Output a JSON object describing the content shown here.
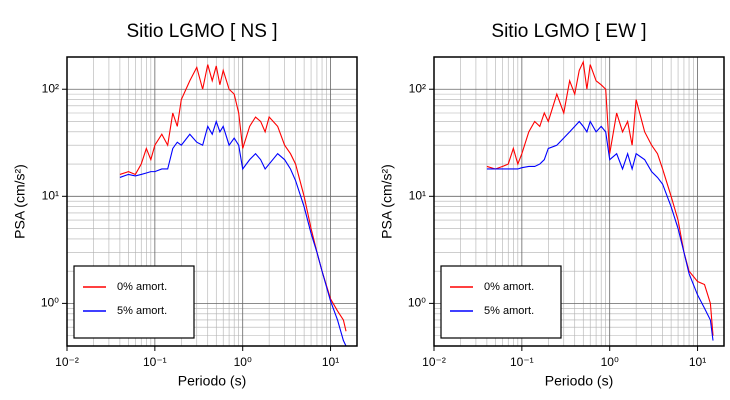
{
  "chart_data": [
    {
      "type": "line",
      "title": "Sitio LGMO [ NS ]",
      "x_label": "Periodo (s)",
      "y_label": "PSA (cm/s²)",
      "log_x": true,
      "log_y": true,
      "grid": true,
      "minor_grid": true,
      "legend": "lower left",
      "xlim": [
        0.01,
        20
      ],
      "ylim": [
        0.4,
        200
      ],
      "xticks": [
        {
          "value": 0.01,
          "label": "10⁻²"
        },
        {
          "value": 0.1,
          "label": "10⁻¹"
        },
        {
          "value": 1,
          "label": "10⁰"
        },
        {
          "value": 10,
          "label": "10¹"
        }
      ],
      "yticks": [
        {
          "value": 1,
          "label": "10⁰"
        },
        {
          "value": 10,
          "label": "10¹"
        },
        {
          "value": 100,
          "label": "10²"
        }
      ],
      "x": [
        0.04,
        0.05,
        0.06,
        0.07,
        0.08,
        0.09,
        0.1,
        0.12,
        0.14,
        0.16,
        0.18,
        0.2,
        0.25,
        0.3,
        0.35,
        0.4,
        0.45,
        0.5,
        0.55,
        0.6,
        0.7,
        0.8,
        0.9,
        1.0,
        1.2,
        1.4,
        1.6,
        1.8,
        2.0,
        2.5,
        3.0,
        3.5,
        4.0,
        5.0,
        6.0,
        7.0,
        8.0,
        10,
        12,
        14,
        15
      ],
      "series": [
        {
          "name": "0% amort.",
          "color": "#ff0000",
          "values": [
            16,
            17,
            16,
            20,
            28,
            22,
            30,
            38,
            30,
            60,
            45,
            80,
            120,
            160,
            100,
            170,
            120,
            165,
            110,
            150,
            100,
            90,
            60,
            28,
            45,
            55,
            50,
            40,
            55,
            45,
            30,
            25,
            20,
            10,
            5,
            3,
            2,
            1.1,
            0.85,
            0.7,
            0.55
          ]
        },
        {
          "name": "5% amort.",
          "color": "#0000ff",
          "values": [
            15,
            16,
            15.5,
            16,
            16.5,
            17,
            17,
            18,
            18,
            28,
            32,
            30,
            38,
            32,
            30,
            45,
            38,
            50,
            40,
            45,
            30,
            35,
            30,
            18,
            22,
            25,
            22,
            18,
            20,
            25,
            22,
            18,
            14,
            8,
            4.5,
            3,
            2,
            1.05,
            0.7,
            0.45,
            0.4
          ]
        }
      ]
    },
    {
      "type": "line",
      "title": "Sitio LGMO [ EW ]",
      "x_label": "Periodo (s)",
      "y_label": "PSA (cm/s²)",
      "log_x": true,
      "log_y": true,
      "grid": true,
      "minor_grid": true,
      "legend": "lower left",
      "xlim": [
        0.01,
        20
      ],
      "ylim": [
        0.4,
        200
      ],
      "xticks": [
        {
          "value": 0.01,
          "label": "10⁻²"
        },
        {
          "value": 0.1,
          "label": "10⁻¹"
        },
        {
          "value": 1,
          "label": "10⁰"
        },
        {
          "value": 10,
          "label": "10¹"
        }
      ],
      "yticks": [
        {
          "value": 1,
          "label": "10⁰"
        },
        {
          "value": 10,
          "label": "10¹"
        },
        {
          "value": 100,
          "label": "10²"
        }
      ],
      "x": [
        0.04,
        0.05,
        0.06,
        0.07,
        0.08,
        0.09,
        0.1,
        0.12,
        0.14,
        0.16,
        0.18,
        0.2,
        0.25,
        0.3,
        0.35,
        0.4,
        0.45,
        0.5,
        0.55,
        0.6,
        0.7,
        0.8,
        0.9,
        1.0,
        1.2,
        1.4,
        1.6,
        1.8,
        2.0,
        2.5,
        3.0,
        3.5,
        4.0,
        5.0,
        6.0,
        7.0,
        8.0,
        10,
        12,
        14,
        15
      ],
      "series": [
        {
          "name": "0% amort.",
          "color": "#ff0000",
          "values": [
            19,
            18,
            19,
            20,
            28,
            20,
            25,
            40,
            50,
            45,
            60,
            50,
            90,
            60,
            120,
            90,
            150,
            180,
            100,
            170,
            120,
            110,
            100,
            25,
            60,
            40,
            50,
            30,
            80,
            40,
            30,
            25,
            18,
            10,
            6,
            3,
            2,
            1.6,
            1.5,
            1.0,
            0.5
          ]
        },
        {
          "name": "5% amort.",
          "color": "#0000ff",
          "values": [
            18,
            18,
            18,
            18,
            18,
            18,
            18.5,
            19,
            19,
            20,
            22,
            28,
            30,
            35,
            40,
            45,
            50,
            45,
            40,
            50,
            40,
            45,
            40,
            22,
            25,
            18,
            25,
            18,
            25,
            22,
            17,
            15,
            13,
            8,
            5,
            3,
            1.9,
            1.2,
            0.9,
            0.7,
            0.45
          ]
        }
      ]
    }
  ]
}
